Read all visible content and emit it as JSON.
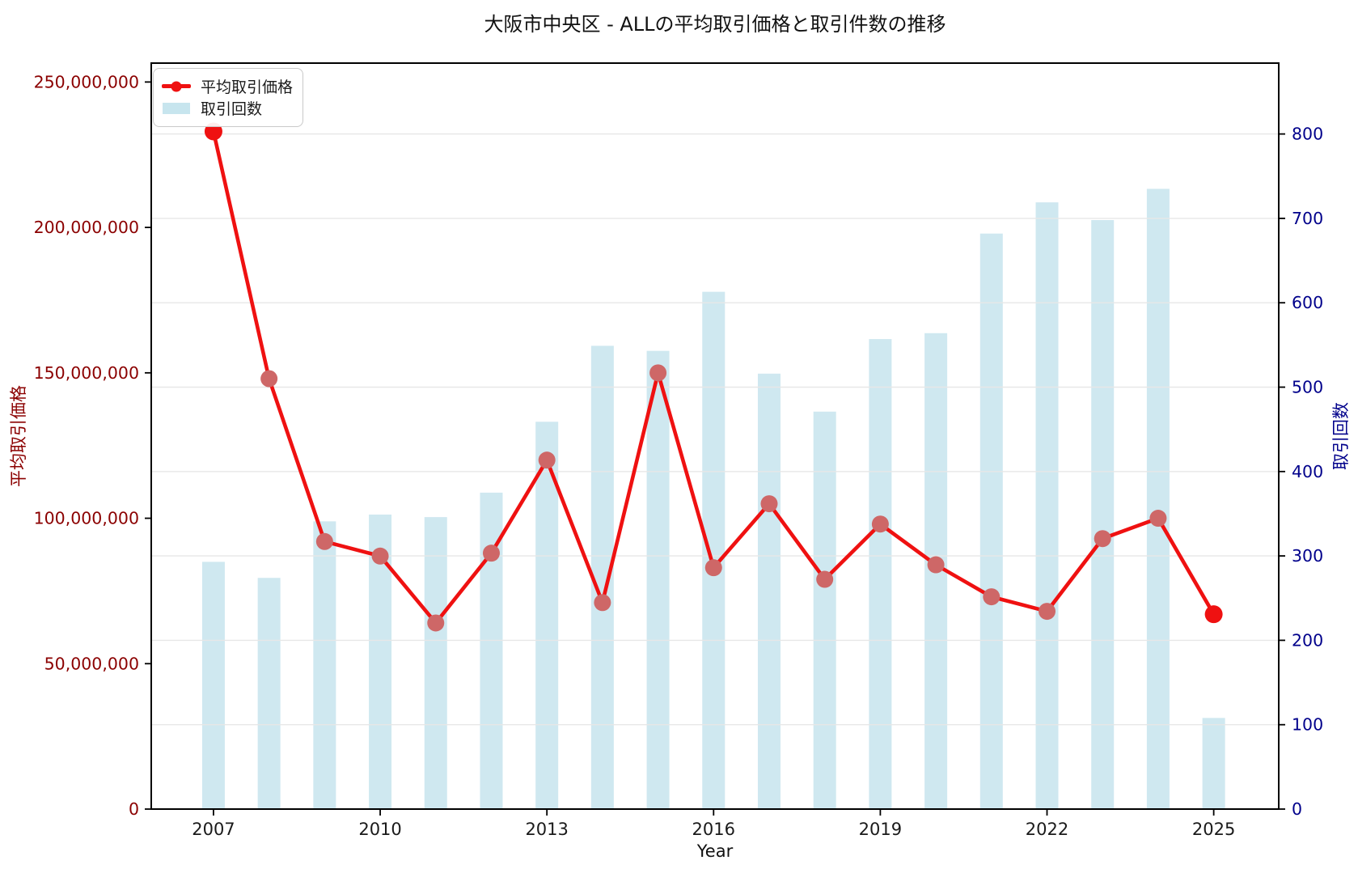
{
  "title": "大阪市中央区 - ALLの平均取引価格と取引件数の推移",
  "axes_labels": {
    "x": "Year",
    "left": "平均取引価格",
    "right": "取引回数"
  },
  "legend": {
    "price_label": "平均取引価格",
    "count_label": "取引回数"
  },
  "colors": {
    "line": "#ef1111",
    "marker_interior": "#ce6767",
    "marker_endpoint": "#ef1111",
    "bar": "#add8e6",
    "bar_opacity": 0.58,
    "grid": "#e7e7e7",
    "spine": "#000000",
    "left_tick_label": "#8b0000",
    "right_tick_label": "#00008b",
    "x_tick_label": "#1a1a1a",
    "title": "#111111"
  },
  "chart_data": {
    "type": "line+bar dual axis",
    "x": [
      2007,
      2008,
      2009,
      2010,
      2011,
      2012,
      2013,
      2014,
      2015,
      2016,
      2017,
      2018,
      2019,
      2020,
      2021,
      2022,
      2023,
      2024,
      2025
    ],
    "series": [
      {
        "name": "平均取引価格",
        "type": "line",
        "axis": "left",
        "values": [
          233000000,
          148000000,
          92000000,
          87000000,
          64000000,
          88000000,
          120000000,
          71000000,
          150000000,
          83000000,
          105000000,
          79000000,
          98000000,
          84000000,
          73000000,
          68000000,
          93000000,
          100000000,
          67000000
        ]
      },
      {
        "name": "取引回数",
        "type": "bar",
        "axis": "right",
        "values": [
          293,
          274,
          341,
          349,
          346,
          375,
          459,
          549,
          543,
          613,
          516,
          471,
          557,
          564,
          682,
          719,
          698,
          735,
          108
        ]
      }
    ],
    "left_axis": {
      "label": "平均取引価格",
      "range": [
        0,
        256500000
      ],
      "tick_values": [
        0,
        50000000,
        100000000,
        150000000,
        200000000,
        250000000
      ],
      "tick_labels": [
        "0",
        "50,000,000",
        "100,000,000",
        "150,000,000",
        "200,000,000",
        "250,000,000"
      ]
    },
    "right_axis": {
      "label": "取引回数",
      "range": [
        0,
        884
      ],
      "tick_values": [
        0,
        100,
        200,
        300,
        400,
        500,
        600,
        700,
        800
      ],
      "tick_labels": [
        "0",
        "100",
        "200",
        "300",
        "400",
        "500",
        "600",
        "700",
        "800"
      ]
    },
    "x_axis": {
      "label": "Year",
      "range": [
        2005.88,
        2026.17
      ],
      "tick_values": [
        2007,
        2010,
        2013,
        2016,
        2019,
        2022,
        2025
      ],
      "tick_labels": [
        "2007",
        "2010",
        "2013",
        "2016",
        "2019",
        "2022",
        "2025"
      ]
    },
    "grid": "horizontal, follows right axis ticks",
    "legend_position": "upper left"
  }
}
